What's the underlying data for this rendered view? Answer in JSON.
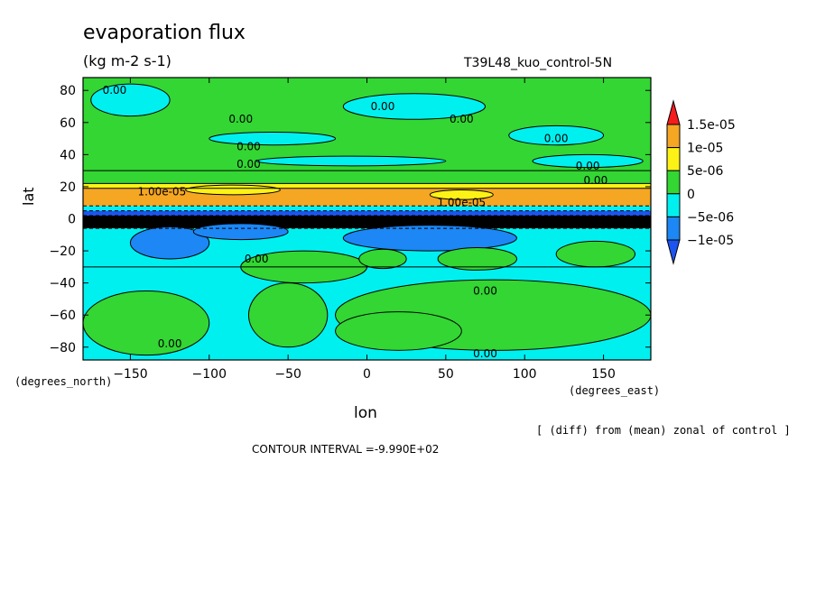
{
  "chart_data": {
    "type": "heatmap",
    "title": "evaporation flux",
    "subtitle": "(kg m-2 s-1)",
    "run_label": "T39L48_kuo_control-5N",
    "xlabel": "lon",
    "ylabel": "lat",
    "x_unit_label": "(degrees_east)",
    "y_unit_label": "(degrees_north)",
    "xlim": [
      -180,
      180
    ],
    "ylim": [
      -88,
      88
    ],
    "x_ticks": [
      -150,
      -100,
      -50,
      0,
      50,
      100,
      150
    ],
    "y_ticks": [
      -80,
      -60,
      -40,
      -20,
      0,
      20,
      40,
      60,
      80
    ],
    "note": "[ (diff) from (mean) zonal of control ]",
    "contour_interval": "CONTOUR INTERVAL =-9.990E+02",
    "colorbar": {
      "labels": [
        "1.5e-05",
        "1e-05",
        "5e-06",
        "0",
        "-5e-06",
        "-1e-05"
      ],
      "colors": [
        "#f51c1c",
        "#f5a623",
        "#fcf216",
        "#33d633",
        "#00f0f0",
        "#1c87f5",
        "#1c54f0"
      ]
    },
    "bands": [
      {
        "lat_from": 88,
        "lat_to": 30,
        "value": 0,
        "color": "#33d633"
      },
      {
        "lat_from": 30,
        "lat_to": 22,
        "value": 5e-06,
        "color": "#33d633"
      },
      {
        "lat_from": 22,
        "lat_to": 19,
        "value": 5e-06,
        "color": "#fcf216"
      },
      {
        "lat_from": 19,
        "lat_to": 8,
        "value": 1e-05,
        "color": "#f5a623"
      },
      {
        "lat_from": 8,
        "lat_to": 5,
        "value": -5e-06,
        "color": "#00f0f0"
      },
      {
        "lat_from": 5,
        "lat_to": 2,
        "value": -1e-05,
        "color": "#1c54f0"
      },
      {
        "lat_from": 2,
        "lat_to": -6,
        "value": -1e-05,
        "color": "#000000"
      },
      {
        "lat_from": -6,
        "lat_to": -30,
        "value": -5e-06,
        "color": "#00f0f0"
      },
      {
        "lat_from": -30,
        "lat_to": -88,
        "value": 0,
        "color": "#00f0f0"
      }
    ],
    "blobs": [
      {
        "lon": -150,
        "lat": 74,
        "rlon": 25,
        "rlat": 10,
        "color": "#00f0f0"
      },
      {
        "lon": 30,
        "lat": 70,
        "rlon": 45,
        "rlat": 8,
        "color": "#00f0f0"
      },
      {
        "lon": 120,
        "lat": 52,
        "rlon": 30,
        "rlat": 6,
        "color": "#00f0f0"
      },
      {
        "lon": -60,
        "lat": 50,
        "rlon": 40,
        "rlat": 4,
        "color": "#00f0f0"
      },
      {
        "lon": 140,
        "lat": 36,
        "rlon": 35,
        "rlat": 4,
        "color": "#00f0f0"
      },
      {
        "lon": -10,
        "lat": 36,
        "rlon": 60,
        "rlat": 3,
        "color": "#00f0f0"
      },
      {
        "lon": -85,
        "lat": 18,
        "rlon": 30,
        "rlat": 3,
        "color": "#fcf216"
      },
      {
        "lon": 60,
        "lat": 15,
        "rlon": 20,
        "rlat": 3,
        "color": "#fcf216"
      },
      {
        "lon": -125,
        "lat": -15,
        "rlon": 25,
        "rlat": 10,
        "color": "#1c87f5"
      },
      {
        "lon": 40,
        "lat": -12,
        "rlon": 55,
        "rlat": 8,
        "color": "#1c87f5"
      },
      {
        "lon": -80,
        "lat": -8,
        "rlon": 30,
        "rlat": 5,
        "color": "#1c87f5"
      },
      {
        "lon": -40,
        "lat": -30,
        "rlon": 40,
        "rlat": 10,
        "color": "#33d633"
      },
      {
        "lon": 10,
        "lat": -25,
        "rlon": 15,
        "rlat": 6,
        "color": "#33d633"
      },
      {
        "lon": 70,
        "lat": -25,
        "rlon": 25,
        "rlat": 7,
        "color": "#33d633"
      },
      {
        "lon": 145,
        "lat": -22,
        "rlon": 25,
        "rlat": 8,
        "color": "#33d633"
      },
      {
        "lon": -140,
        "lat": -65,
        "rlon": 40,
        "rlat": 20,
        "color": "#33d633"
      },
      {
        "lon": -50,
        "lat": -60,
        "rlon": 25,
        "rlat": 20,
        "color": "#33d633"
      },
      {
        "lon": 80,
        "lat": -60,
        "rlon": 100,
        "rlat": 22,
        "color": "#33d633"
      },
      {
        "lon": 20,
        "lat": -70,
        "rlon": 40,
        "rlat": 12,
        "color": "#33d633"
      }
    ],
    "contour_labels": [
      {
        "text": "0.00",
        "lon": -160,
        "lat": 80
      },
      {
        "text": "0.00",
        "lon": -80,
        "lat": 62
      },
      {
        "text": "0.00",
        "lon": 10,
        "lat": 70
      },
      {
        "text": "0.00",
        "lon": 60,
        "lat": 62
      },
      {
        "text": "0.00",
        "lon": 120,
        "lat": 50
      },
      {
        "text": "0.00",
        "lon": -75,
        "lat": 45
      },
      {
        "text": "0.00",
        "lon": -75,
        "lat": 34
      },
      {
        "text": "0.00",
        "lon": 140,
        "lat": 33
      },
      {
        "text": "0.00",
        "lon": 145,
        "lat": 24
      },
      {
        "text": "1.00e-05",
        "lon": -130,
        "lat": 17
      },
      {
        "text": "1.00e-05",
        "lon": 60,
        "lat": 10
      },
      {
        "text": "0.00",
        "lon": -70,
        "lat": -25
      },
      {
        "text": "0.00",
        "lon": 75,
        "lat": -45
      },
      {
        "text": "0.00",
        "lon": -125,
        "lat": -78
      },
      {
        "text": "0.00",
        "lon": 75,
        "lat": -84
      }
    ]
  }
}
